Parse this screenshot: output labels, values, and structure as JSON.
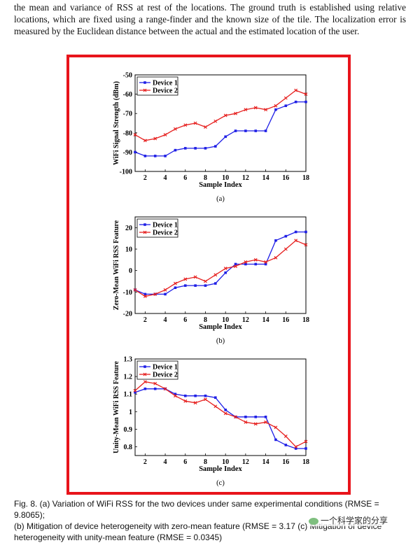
{
  "paragraph": "the mean and variance of RSS at rest of the locations. The ground truth is established using relative locations, which are fixed using a range-finder and the known size of the tile. The localization error is measured by the Euclidean distance between the actual and the estimated location of the user.",
  "caption": {
    "line1": "Fig. 8.  (a) Variation of WiFi RSS for the two devices under same experimental conditions (RMSE = 9.8065);",
    "line2": "(b) Mitigation of device heterogeneity with zero-mean feature (RMSE = 3.17",
    "line2_tail": "(c) Mitigation of device",
    "line3": "heterogeneity with unity-mean feature (RMSE = 0.0345)"
  },
  "watermark": "一个科学家的分享",
  "colors": {
    "device1": "#1f1fe6",
    "device2": "#e6201f",
    "frame": "#e8141b"
  },
  "chart_data": [
    {
      "type": "line",
      "panel_label": "(a)",
      "xlabel": "Sample Index",
      "ylabel": "WiFi Signal Strength (dBm)",
      "xlim": [
        1,
        18
      ],
      "ylim": [
        -100,
        -50
      ],
      "xticks": [
        2,
        4,
        6,
        8,
        10,
        12,
        14,
        16,
        18
      ],
      "yticks": [
        -100,
        -90,
        -80,
        -70,
        -60,
        -50
      ],
      "ytick_labels": [
        "-100",
        "-90",
        "-80",
        "-70",
        "-60",
        "-50"
      ],
      "legend_position": "top-left",
      "x": [
        1,
        2,
        3,
        4,
        5,
        6,
        7,
        8,
        9,
        10,
        11,
        12,
        13,
        14,
        15,
        16,
        17,
        18
      ],
      "series": [
        {
          "name": "Device 1",
          "color": "#1f1fe6",
          "values": [
            -90,
            -92,
            -92,
            -92,
            -89,
            -88,
            -88,
            -88,
            -87,
            -82,
            -79,
            -79,
            -79,
            -79,
            -68,
            -66,
            -64,
            -64
          ]
        },
        {
          "name": "Device 2",
          "color": "#e6201f",
          "values": [
            -81,
            -84,
            -83,
            -81,
            -78,
            -76,
            -75,
            -77,
            -74,
            -71,
            -70,
            -68,
            -67,
            -68,
            -66,
            -62,
            -58,
            -60
          ]
        }
      ]
    },
    {
      "type": "line",
      "panel_label": "(b)",
      "xlabel": "Sample Index",
      "ylabel": "Zero-Mean WiFi RSS Feature",
      "xlim": [
        1,
        18
      ],
      "ylim": [
        -20,
        25
      ],
      "xticks": [
        2,
        4,
        6,
        8,
        10,
        12,
        14,
        16,
        18
      ],
      "yticks": [
        -20,
        -10,
        0,
        10,
        20
      ],
      "ytick_labels": [
        "-20",
        "-10",
        "0",
        "10",
        "20"
      ],
      "legend_position": "top-left",
      "x": [
        1,
        2,
        3,
        4,
        5,
        6,
        7,
        8,
        9,
        10,
        11,
        12,
        13,
        14,
        15,
        16,
        17,
        18
      ],
      "series": [
        {
          "name": "Device 1",
          "color": "#1f1fe6",
          "values": [
            -9,
            -11,
            -11,
            -11,
            -8,
            -7,
            -7,
            -7,
            -6,
            -1,
            3,
            3,
            3,
            3,
            14,
            16,
            18,
            18
          ]
        },
        {
          "name": "Device 2",
          "color": "#e6201f",
          "values": [
            -9,
            -12,
            -11,
            -9,
            -6,
            -4,
            -3,
            -5,
            -2,
            1,
            2,
            4,
            5,
            4,
            6,
            10,
            14,
            12
          ]
        }
      ]
    },
    {
      "type": "line",
      "panel_label": "(c)",
      "xlabel": "Sample Index",
      "ylabel": "Unity-Mean WiFi RSS Feature",
      "xlim": [
        1,
        18
      ],
      "ylim": [
        0.75,
        1.3
      ],
      "xticks": [
        2,
        4,
        6,
        8,
        10,
        12,
        14,
        16,
        18
      ],
      "yticks": [
        0.8,
        0.9,
        1.0,
        1.1,
        1.2,
        1.3
      ],
      "ytick_labels": [
        "0.8",
        "0.9",
        "1",
        "1.1",
        "1.2",
        "1.3"
      ],
      "legend_position": "top-left",
      "x": [
        1,
        2,
        3,
        4,
        5,
        6,
        7,
        8,
        9,
        10,
        11,
        12,
        13,
        14,
        15,
        16,
        17,
        18
      ],
      "series": [
        {
          "name": "Device 1",
          "color": "#1f1fe6",
          "values": [
            1.11,
            1.13,
            1.13,
            1.13,
            1.1,
            1.09,
            1.09,
            1.09,
            1.08,
            1.01,
            0.97,
            0.97,
            0.97,
            0.97,
            0.84,
            0.81,
            0.79,
            0.79
          ]
        },
        {
          "name": "Device 2",
          "color": "#e6201f",
          "values": [
            1.12,
            1.17,
            1.16,
            1.13,
            1.09,
            1.06,
            1.05,
            1.07,
            1.03,
            0.99,
            0.97,
            0.94,
            0.93,
            0.94,
            0.91,
            0.86,
            0.8,
            0.83
          ]
        }
      ]
    }
  ]
}
